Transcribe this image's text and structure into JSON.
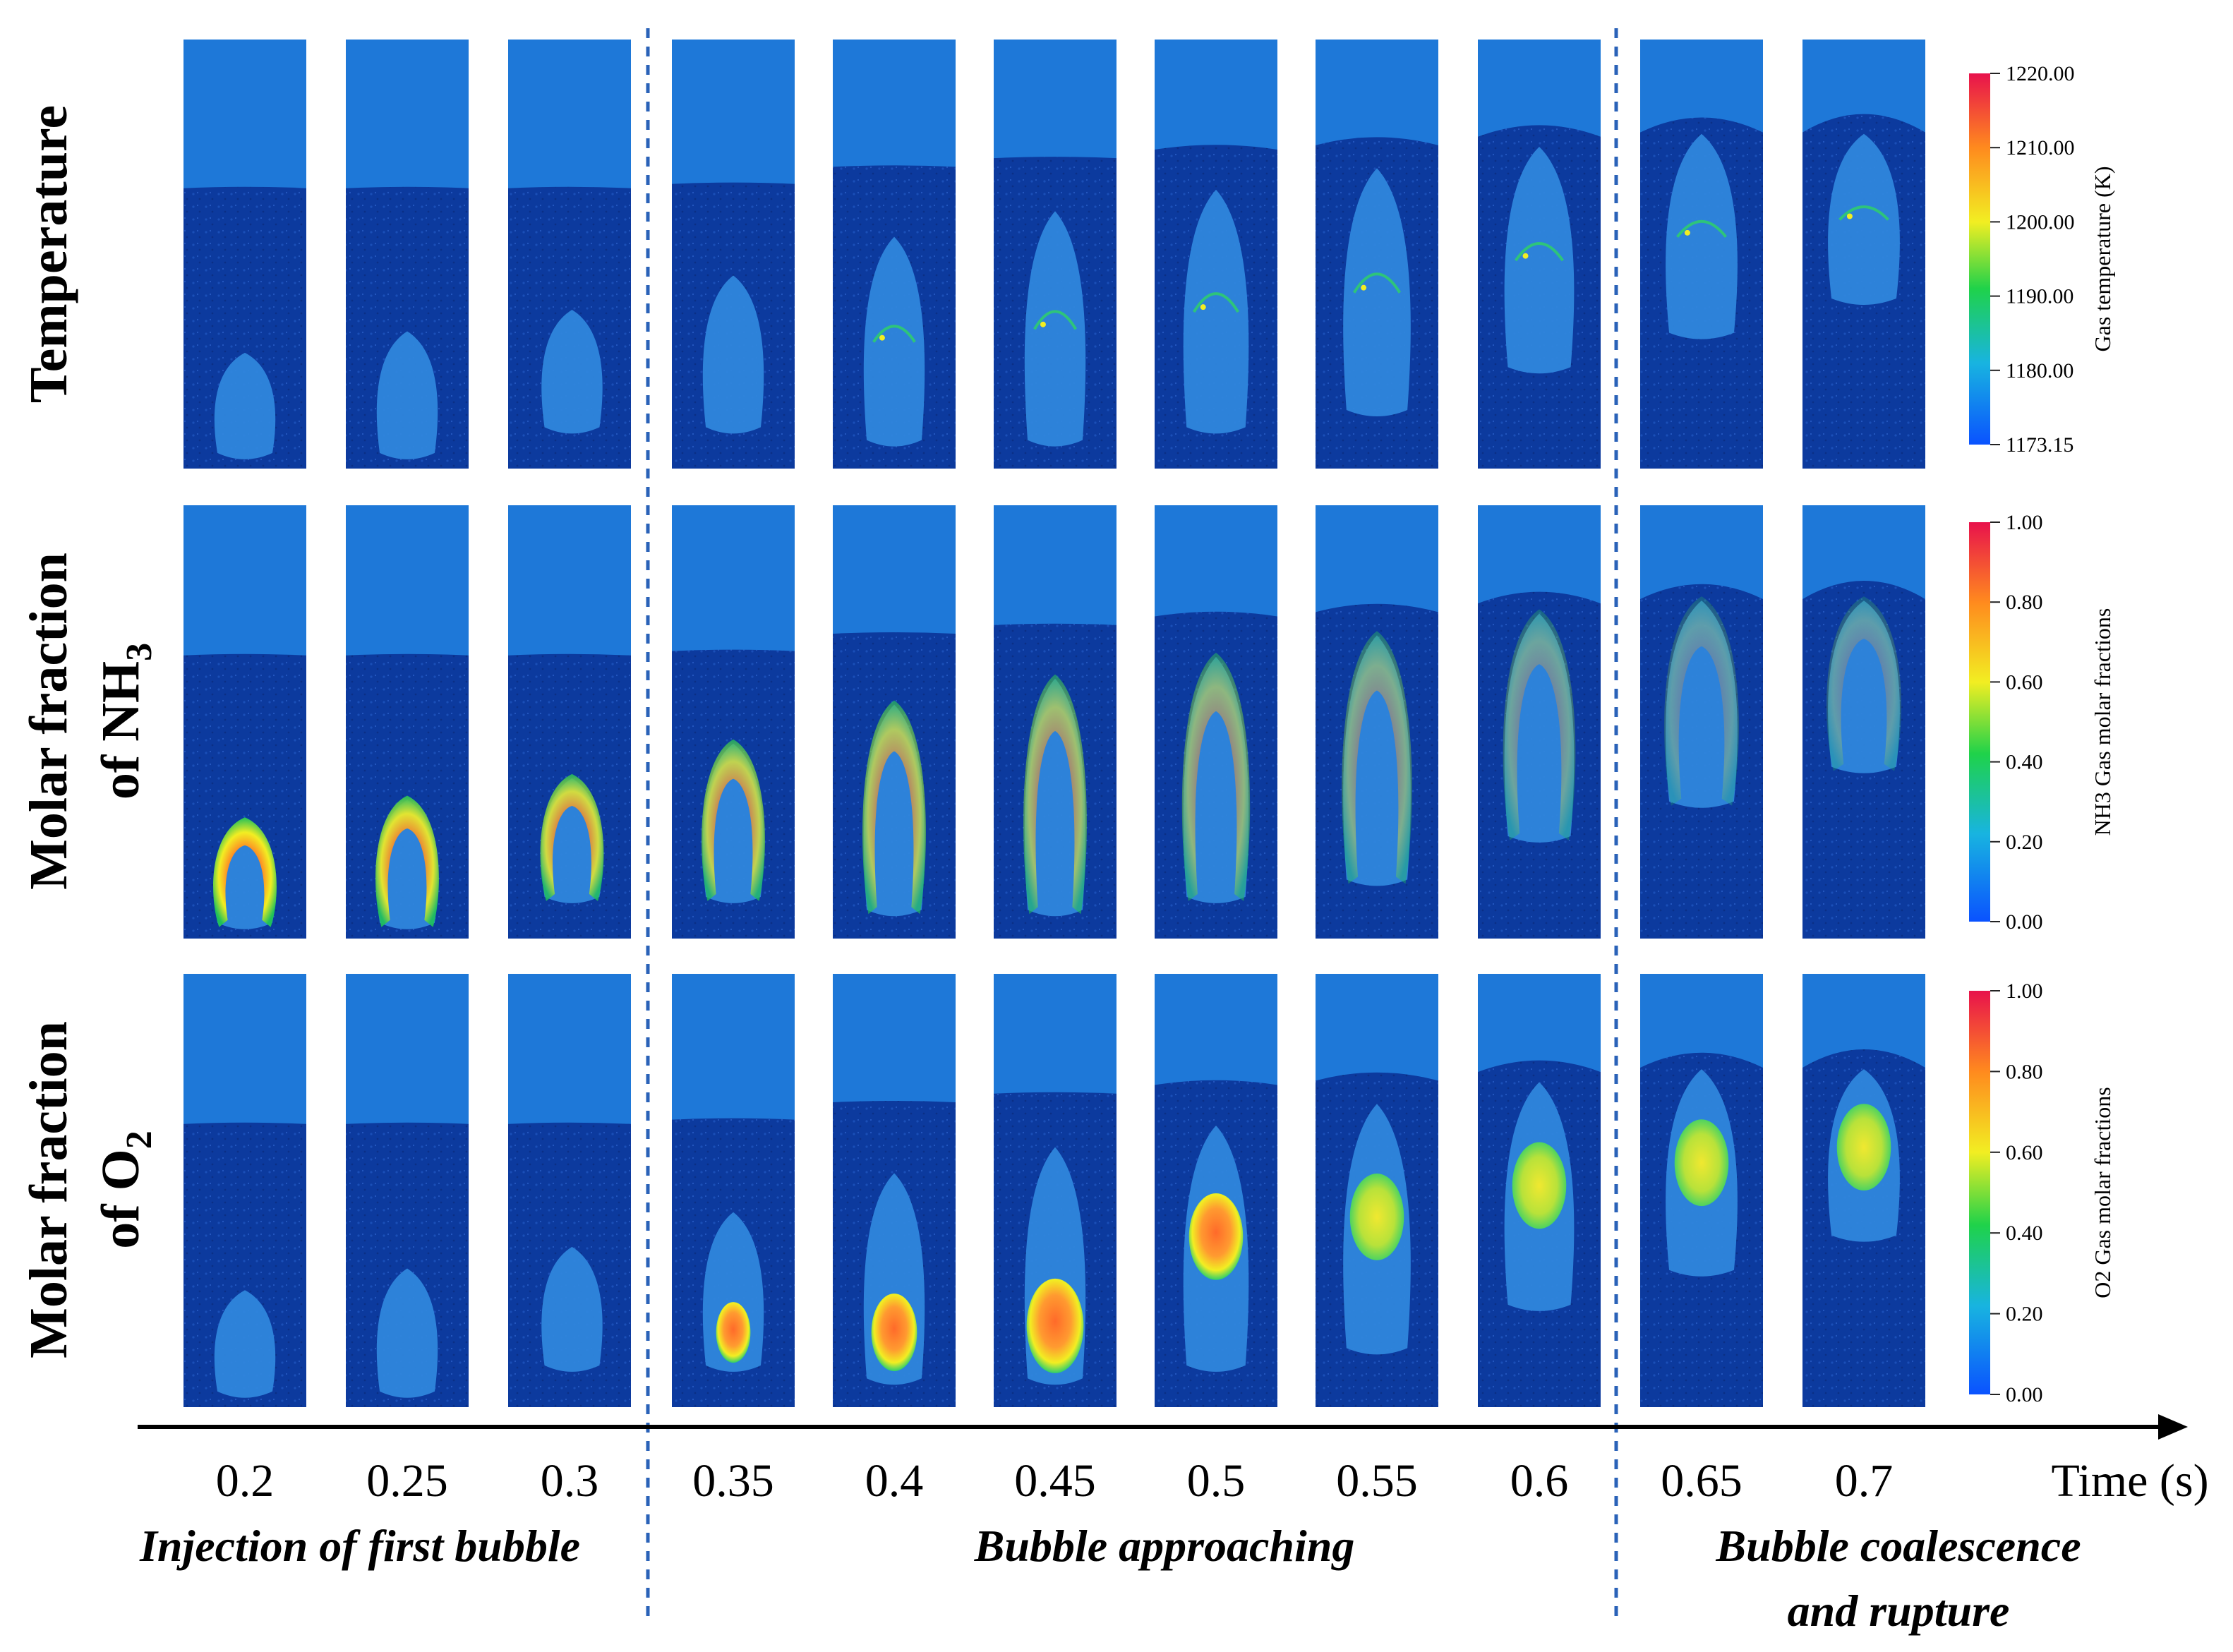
{
  "rows": [
    {
      "id": "temp",
      "label_lines": [
        "Temperature"
      ],
      "colorbar": {
        "title": "Gas temperature (K)",
        "ticks": [
          "1220.00",
          "1210.00",
          "1200.00",
          "1190.00",
          "1180.00",
          "1173.15"
        ]
      }
    },
    {
      "id": "nh3",
      "label_lines": [
        "Molar fraction",
        "of NH",
        "3"
      ],
      "colorbar": {
        "title": "NH3 Gas molar fractions",
        "ticks": [
          "1.00",
          "0.80",
          "0.60",
          "0.40",
          "0.20",
          "0.00"
        ]
      }
    },
    {
      "id": "o2",
      "label_lines": [
        "Molar fraction",
        "of O",
        "2"
      ],
      "colorbar": {
        "title": "O2 Gas molar fractions",
        "ticks": [
          "1.00",
          "0.80",
          "0.60",
          "0.40",
          "0.20",
          "0.00"
        ]
      }
    }
  ],
  "times": [
    "0.2",
    "0.25",
    "0.3",
    "0.35",
    "0.4",
    "0.45",
    "0.5",
    "0.55",
    "0.6",
    "0.65",
    "0.7"
  ],
  "time_axis_label": "Time (s)",
  "phases": [
    {
      "lines": [
        "Injection of first bubble"
      ]
    },
    {
      "lines": [
        "Bubble approaching"
      ]
    },
    {
      "lines": [
        "Bubble coalescence",
        "and rupture"
      ]
    }
  ],
  "colors": {
    "freeboard": "#1e78d8",
    "bed": "#0c3a9e",
    "bubble": "#2f86dc",
    "divider": "#2a62b8"
  }
}
